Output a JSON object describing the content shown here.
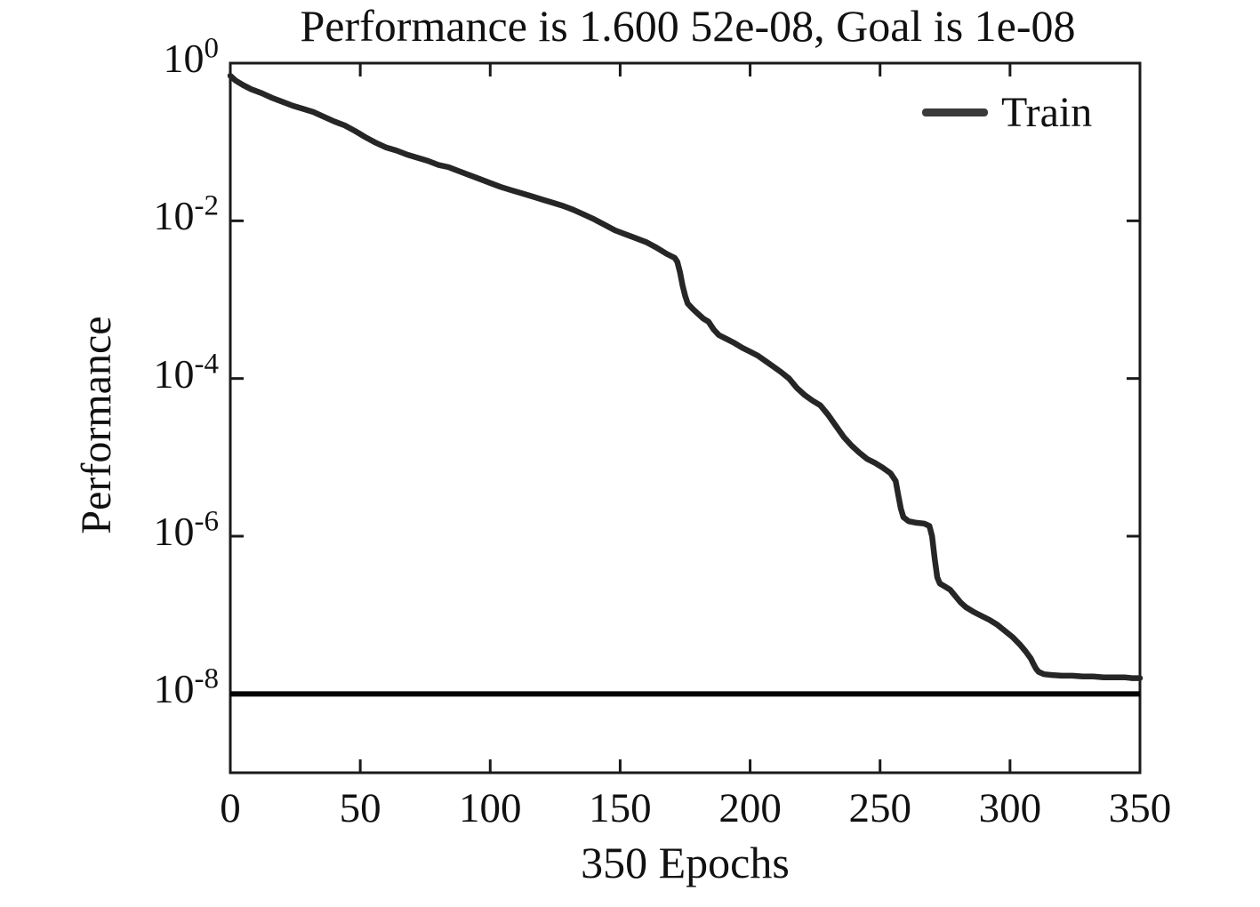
{
  "title": "Performance is 1.600 52e-08, Goal is 1e-08",
  "colors": {
    "background": "#ffffff",
    "axis": "#1a1a1a",
    "curve": "#262626",
    "goal_line": "#030303",
    "legend_sample": "#3a3a3a",
    "text": "#111111"
  },
  "chart_data": {
    "type": "line",
    "title": "Performance is 1.600 52e-08, Goal is 1e-08",
    "xlabel": "350 Epochs",
    "ylabel": "Performance",
    "final_performance": "1.600 52e-08",
    "goal_performance": "1e-08",
    "xlim": [
      0,
      350
    ],
    "ylim_log10": [
      0,
      -9
    ],
    "grid": false,
    "x_ticks": [
      0,
      50,
      100,
      150,
      200,
      250,
      300,
      350
    ],
    "y_tick_exponents": [
      0,
      -2,
      -4,
      -6,
      -8
    ],
    "legend": {
      "position": "upper-right",
      "entries": [
        {
          "label": "Train",
          "color": "#3a3a3a"
        }
      ]
    },
    "goal_line": {
      "log10_value": -8,
      "color": "#030303"
    },
    "series": [
      {
        "name": "Train",
        "color": "#262626",
        "points_epoch_log10": [
          [
            0,
            -0.16
          ],
          [
            2,
            -0.22
          ],
          [
            5,
            -0.28
          ],
          [
            8,
            -0.33
          ],
          [
            12,
            -0.38
          ],
          [
            16,
            -0.44
          ],
          [
            20,
            -0.49
          ],
          [
            24,
            -0.54
          ],
          [
            28,
            -0.58
          ],
          [
            32,
            -0.62
          ],
          [
            36,
            -0.68
          ],
          [
            40,
            -0.74
          ],
          [
            44,
            -0.79
          ],
          [
            48,
            -0.86
          ],
          [
            52,
            -0.94
          ],
          [
            56,
            -1.01
          ],
          [
            60,
            -1.07
          ],
          [
            64,
            -1.11
          ],
          [
            68,
            -1.16
          ],
          [
            72,
            -1.2
          ],
          [
            76,
            -1.24
          ],
          [
            80,
            -1.29
          ],
          [
            84,
            -1.32
          ],
          [
            88,
            -1.37
          ],
          [
            92,
            -1.42
          ],
          [
            96,
            -1.47
          ],
          [
            100,
            -1.52
          ],
          [
            104,
            -1.57
          ],
          [
            108,
            -1.61
          ],
          [
            112,
            -1.65
          ],
          [
            116,
            -1.69
          ],
          [
            120,
            -1.73
          ],
          [
            124,
            -1.77
          ],
          [
            128,
            -1.81
          ],
          [
            132,
            -1.86
          ],
          [
            136,
            -1.92
          ],
          [
            140,
            -1.98
          ],
          [
            144,
            -2.05
          ],
          [
            148,
            -2.12
          ],
          [
            152,
            -2.17
          ],
          [
            156,
            -2.22
          ],
          [
            160,
            -2.27
          ],
          [
            164,
            -2.34
          ],
          [
            168,
            -2.42
          ],
          [
            171,
            -2.47
          ],
          [
            172,
            -2.52
          ],
          [
            173,
            -2.65
          ],
          [
            174,
            -2.82
          ],
          [
            175,
            -2.95
          ],
          [
            176,
            -3.05
          ],
          [
            178,
            -3.12
          ],
          [
            180,
            -3.18
          ],
          [
            182,
            -3.24
          ],
          [
            184,
            -3.28
          ],
          [
            186,
            -3.38
          ],
          [
            188,
            -3.45
          ],
          [
            191,
            -3.5
          ],
          [
            194,
            -3.55
          ],
          [
            197,
            -3.61
          ],
          [
            200,
            -3.66
          ],
          [
            203,
            -3.71
          ],
          [
            206,
            -3.78
          ],
          [
            209,
            -3.85
          ],
          [
            212,
            -3.92
          ],
          [
            215,
            -4.0
          ],
          [
            218,
            -4.12
          ],
          [
            221,
            -4.21
          ],
          [
            224,
            -4.28
          ],
          [
            227,
            -4.34
          ],
          [
            230,
            -4.46
          ],
          [
            233,
            -4.6
          ],
          [
            236,
            -4.74
          ],
          [
            239,
            -4.85
          ],
          [
            242,
            -4.94
          ],
          [
            245,
            -5.02
          ],
          [
            248,
            -5.07
          ],
          [
            251,
            -5.13
          ],
          [
            254,
            -5.2
          ],
          [
            256,
            -5.3
          ],
          [
            257,
            -5.48
          ],
          [
            258,
            -5.65
          ],
          [
            259,
            -5.76
          ],
          [
            261,
            -5.81
          ],
          [
            264,
            -5.83
          ],
          [
            267,
            -5.84
          ],
          [
            269,
            -5.87
          ],
          [
            270,
            -6.0
          ],
          [
            271,
            -6.28
          ],
          [
            272,
            -6.52
          ],
          [
            273,
            -6.6
          ],
          [
            275,
            -6.64
          ],
          [
            277,
            -6.68
          ],
          [
            279,
            -6.76
          ],
          [
            281,
            -6.84
          ],
          [
            283,
            -6.9
          ],
          [
            286,
            -6.96
          ],
          [
            289,
            -7.01
          ],
          [
            292,
            -7.06
          ],
          [
            295,
            -7.12
          ],
          [
            298,
            -7.2
          ],
          [
            301,
            -7.28
          ],
          [
            304,
            -7.38
          ],
          [
            306,
            -7.46
          ],
          [
            308,
            -7.55
          ],
          [
            309,
            -7.62
          ],
          [
            310,
            -7.68
          ],
          [
            311,
            -7.72
          ],
          [
            313,
            -7.75
          ],
          [
            316,
            -7.76
          ],
          [
            320,
            -7.77
          ],
          [
            324,
            -7.77
          ],
          [
            328,
            -7.78
          ],
          [
            332,
            -7.78
          ],
          [
            336,
            -7.79
          ],
          [
            340,
            -7.79
          ],
          [
            344,
            -7.79
          ],
          [
            347,
            -7.8
          ],
          [
            350,
            -7.8
          ]
        ]
      }
    ]
  }
}
